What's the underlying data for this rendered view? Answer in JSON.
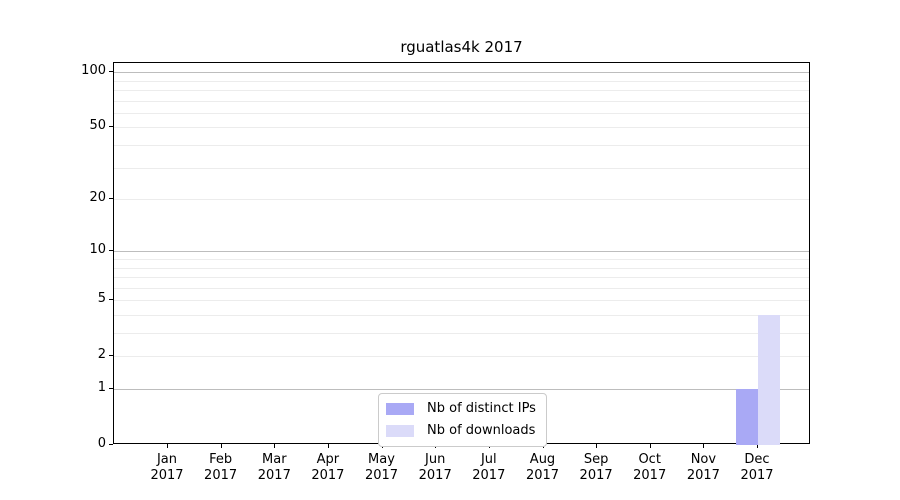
{
  "figure": {
    "title": "rguatlas4k 2017"
  },
  "chart_data": {
    "type": "bar",
    "title": "rguatlas4k 2017",
    "categories": [
      "Jan 2017",
      "Feb 2017",
      "Mar 2017",
      "Apr 2017",
      "May 2017",
      "Jun 2017",
      "Jul 2017",
      "Aug 2017",
      "Sep 2017",
      "Oct 2017",
      "Nov 2017",
      "Dec 2017"
    ],
    "x_tick_labels": [
      [
        "Jan",
        "2017"
      ],
      [
        "Feb",
        "2017"
      ],
      [
        "Mar",
        "2017"
      ],
      [
        "Apr",
        "2017"
      ],
      [
        "May",
        "2017"
      ],
      [
        "Jun",
        "2017"
      ],
      [
        "Jul",
        "2017"
      ],
      [
        "Aug",
        "2017"
      ],
      [
        "Sep",
        "2017"
      ],
      [
        "Oct",
        "2017"
      ],
      [
        "Nov",
        "2017"
      ],
      [
        "Dec",
        "2017"
      ]
    ],
    "series": [
      {
        "name": "Nb of distinct IPs",
        "color": "#a9a9f5",
        "values": [
          0,
          0,
          0,
          0,
          0,
          0,
          0,
          0,
          0,
          0,
          0,
          1
        ]
      },
      {
        "name": "Nb of downloads",
        "color": "#dbdbf9",
        "values": [
          0,
          0,
          0,
          0,
          0,
          0,
          0,
          0,
          0,
          0,
          0,
          4
        ]
      }
    ],
    "xlabel": "",
    "ylabel": "",
    "yscale": "log1p",
    "ylim": [
      0,
      112
    ],
    "yticks": [
      100,
      50,
      20,
      10,
      5,
      2,
      1,
      0
    ],
    "major_gridlines": [
      1,
      10,
      100
    ],
    "minor_gridlines": [
      2,
      3,
      4,
      5,
      6,
      7,
      8,
      9,
      20,
      30,
      40,
      50,
      60,
      70,
      80,
      90
    ],
    "grid": true,
    "legend_position": "lower center",
    "colors": {
      "background": "#ffffff",
      "spine": "#000000",
      "text": "#000000",
      "major_grid": "#bdbdbd",
      "minor_grid": "#ececec",
      "legend_border": "#cbcbcb"
    }
  }
}
